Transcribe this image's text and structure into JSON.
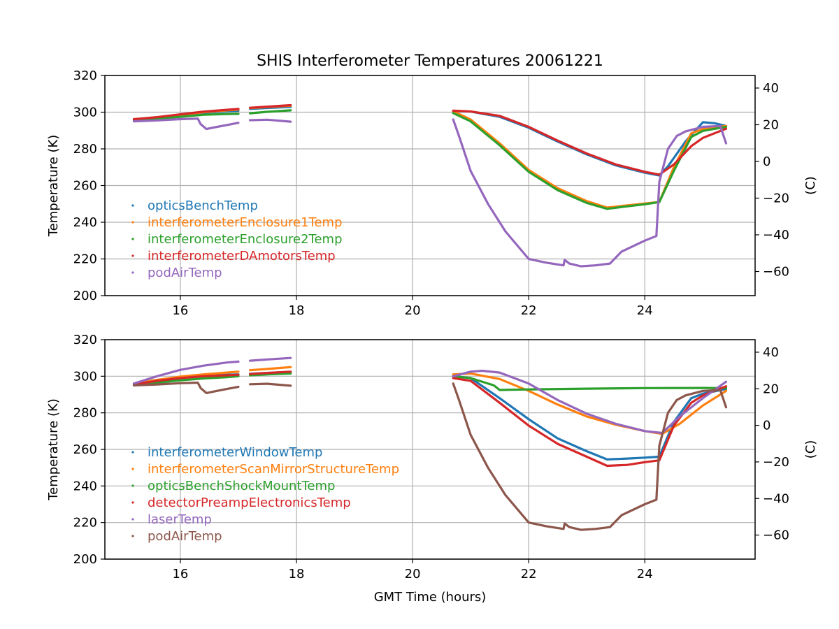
{
  "chart_data": [
    {
      "type": "line",
      "title": "SHIS Interferometer Temperatures 20061221",
      "xlabel": "",
      "ylabel": "Temperature (K)",
      "ylabel_right": "(C)",
      "xlim": [
        14.7,
        25.9
      ],
      "ylim": [
        200,
        320
      ],
      "ylim_right_celsius": [
        -73.15,
        46.85
      ],
      "xticks": [
        16,
        18,
        20,
        22,
        24
      ],
      "yticks": [
        200,
        220,
        240,
        260,
        280,
        300,
        320
      ],
      "yticks_right": [
        -60,
        -40,
        -20,
        0,
        20,
        40
      ],
      "grid": true,
      "legend_position": "center-left",
      "series": [
        {
          "name": "opticsBenchTemp",
          "color": "#1f77b4",
          "segments": [
            {
              "x": [
                15.2,
                15.6,
                16.0,
                16.4,
                16.8,
                17.0
              ],
              "y": [
                295.6,
                296.8,
                298.2,
                299.6,
                300.5,
                300.8
              ]
            },
            {
              "x": [
                17.2,
                17.5,
                17.9
              ],
              "y": [
                301.8,
                302.3,
                302.9
              ]
            },
            {
              "x": [
                20.7,
                21.0,
                21.5,
                22.0,
                22.5,
                23.0,
                23.5,
                24.0,
                24.25,
                24.4,
                24.7,
                25.0,
                25.2,
                25.4
              ],
              "y": [
                300.5,
                300.3,
                297.5,
                291.5,
                284.0,
                277.0,
                271.0,
                267.0,
                265.5,
                270.5,
                284.0,
                294.5,
                294.0,
                292.5
              ]
            }
          ]
        },
        {
          "name": "interferometerEnclosure1Temp",
          "color": "#ff7f0e",
          "segments": [
            {
              "x": [
                15.2,
                15.6,
                16.0,
                16.4,
                16.8,
                17.0
              ],
              "y": [
                295.8,
                297.0,
                298.5,
                300.0,
                301.0,
                301.4
              ]
            },
            {
              "x": [
                17.2,
                17.5,
                17.9
              ],
              "y": [
                302.2,
                302.8,
                303.5
              ]
            },
            {
              "x": [
                20.7,
                21.0,
                21.5,
                22.0,
                22.5,
                23.0,
                23.35,
                23.7,
                24.0,
                24.25,
                24.5,
                24.8,
                25.0,
                25.4
              ],
              "y": [
                300.5,
                296.0,
                283.0,
                268.5,
                258.5,
                251.5,
                248.0,
                249.2,
                250.2,
                251.0,
                270.0,
                288.5,
                290.8,
                292.5
              ]
            }
          ]
        },
        {
          "name": "interferometerEnclosure2Temp",
          "color": "#2ca02c",
          "segments": [
            {
              "x": [
                15.2,
                15.6,
                16.0,
                16.4,
                16.8,
                17.0
              ],
              "y": [
                295.5,
                296.3,
                297.5,
                298.6,
                299.0,
                299.1
              ]
            },
            {
              "x": [
                17.2,
                17.5,
                17.9
              ],
              "y": [
                299.4,
                300.2,
                301.0
              ]
            },
            {
              "x": [
                20.7,
                21.0,
                21.5,
                22.0,
                22.5,
                23.0,
                23.35,
                23.7,
                24.0,
                24.25,
                24.5,
                24.8,
                25.0,
                25.4
              ],
              "y": [
                299.5,
                295.0,
                282.0,
                267.5,
                257.5,
                250.5,
                247.3,
                248.7,
                249.8,
                251.0,
                268.0,
                286.5,
                289.8,
                292.0
              ]
            }
          ]
        },
        {
          "name": "interferometerDAmotorsTemp",
          "color": "#d62728",
          "segments": [
            {
              "x": [
                15.2,
                15.6,
                16.0,
                16.4,
                16.8,
                17.0
              ],
              "y": [
                296.2,
                297.3,
                298.8,
                300.3,
                301.3,
                301.8
              ]
            },
            {
              "x": [
                17.2,
                17.5,
                17.9
              ],
              "y": [
                302.4,
                303.0,
                303.8
              ]
            },
            {
              "x": [
                20.7,
                21.0,
                21.5,
                22.0,
                22.5,
                23.0,
                23.5,
                24.0,
                24.25,
                24.5,
                24.8,
                25.0,
                25.4
              ],
              "y": [
                300.8,
                300.4,
                298.0,
                292.0,
                284.5,
                277.5,
                271.5,
                267.5,
                266.0,
                271.5,
                281.5,
                286.0,
                291.0
              ]
            }
          ]
        },
        {
          "name": "podAirTemp",
          "color": "#9467bd",
          "segments": [
            {
              "x": [
                15.2,
                15.6,
                16.0,
                16.3,
                16.35,
                16.45,
                16.6,
                16.8,
                17.0
              ],
              "y": [
                295.0,
                295.5,
                296.2,
                296.5,
                293.5,
                290.8,
                291.8,
                293.0,
                294.2
              ]
            },
            {
              "x": [
                17.2,
                17.5,
                17.9
              ],
              "y": [
                295.6,
                295.9,
                294.8
              ]
            },
            {
              "x": [
                20.7,
                20.8,
                21.0,
                21.3,
                21.6,
                22.0,
                22.3,
                22.6,
                22.62,
                22.7,
                22.9,
                23.15,
                23.4,
                23.6,
                24.0,
                24.2,
                24.25,
                24.4,
                24.55,
                24.7,
                25.0,
                25.3,
                25.4
              ],
              "y": [
                296.0,
                287.0,
                268.0,
                250.0,
                235.0,
                220.0,
                218.0,
                216.5,
                219.5,
                217.5,
                216.0,
                216.5,
                217.5,
                224.0,
                230.0,
                232.5,
                262.0,
                280.0,
                287.0,
                289.5,
                292.0,
                292.5,
                283.0
              ]
            }
          ]
        }
      ]
    },
    {
      "type": "line",
      "title": "",
      "xlabel": "GMT Time (hours)",
      "ylabel": "Temperature (K)",
      "ylabel_right": "(C)",
      "xlim": [
        14.7,
        25.9
      ],
      "ylim": [
        200,
        320
      ],
      "ylim_right_celsius": [
        -73.15,
        46.85
      ],
      "xticks": [
        16,
        18,
        20,
        22,
        24
      ],
      "yticks": [
        200,
        220,
        240,
        260,
        280,
        300,
        320
      ],
      "yticks_right": [
        -60,
        -40,
        -20,
        0,
        20,
        40
      ],
      "grid": true,
      "legend_position": "center-left",
      "series": [
        {
          "name": "interferometerWindowTemp",
          "color": "#1f77b4",
          "segments": [
            {
              "x": [
                15.2,
                15.6,
                16.0,
                16.4,
                16.8,
                17.0
              ],
              "y": [
                296.0,
                298.0,
                299.5,
                300.3,
                300.8,
                301.0
              ]
            },
            {
              "x": [
                17.2,
                17.5,
                17.9
              ],
              "y": [
                301.3,
                301.8,
                302.4
              ]
            },
            {
              "x": [
                20.7,
                21.0,
                21.5,
                22.0,
                22.5,
                23.0,
                23.35,
                23.7,
                24.0,
                24.25,
                24.5,
                24.8,
                25.0,
                25.4
              ],
              "y": [
                300.0,
                299.0,
                288.0,
                276.5,
                266.0,
                259.0,
                254.5,
                255.0,
                255.5,
                256.0,
                275.0,
                288.0,
                290.5,
                293.0
              ]
            }
          ]
        },
        {
          "name": "interferometerScanMirrorStructureTemp",
          "color": "#ff7f0e",
          "segments": [
            {
              "x": [
                15.2,
                15.6,
                16.0,
                16.4,
                16.8,
                17.0
              ],
              "y": [
                296.0,
                298.0,
                299.8,
                301.0,
                302.0,
                302.5
              ]
            },
            {
              "x": [
                17.2,
                17.5,
                17.9
              ],
              "y": [
                303.3,
                304.0,
                305.0
              ]
            },
            {
              "x": [
                20.7,
                21.0,
                21.5,
                22.0,
                22.5,
                23.0,
                23.5,
                24.0,
                24.3,
                24.6,
                25.0,
                25.4
              ],
              "y": [
                301.0,
                301.5,
                298.5,
                292.0,
                284.5,
                278.0,
                273.5,
                270.0,
                268.5,
                274.0,
                284.0,
                292.0
              ]
            }
          ]
        },
        {
          "name": "opticsBenchShockMountTemp",
          "color": "#2ca02c",
          "segments": [
            {
              "x": [
                15.2,
                15.6,
                16.0,
                16.4,
                16.8,
                17.0
              ],
              "y": [
                295.0,
                296.5,
                297.8,
                298.8,
                299.5,
                300.0
              ]
            },
            {
              "x": [
                17.2,
                17.5,
                17.9
              ],
              "y": [
                300.5,
                301.0,
                301.5
              ]
            },
            {
              "x": [
                20.7,
                21.0,
                21.4,
                21.5,
                22.0,
                23.0,
                24.0,
                25.0,
                25.4
              ],
              "y": [
                300.0,
                299.0,
                295.0,
                292.5,
                292.8,
                293.2,
                293.5,
                293.6,
                293.5
              ]
            }
          ]
        },
        {
          "name": "detectorPreampElectronicsTemp",
          "color": "#d62728",
          "segments": [
            {
              "x": [
                15.2,
                15.6,
                16.0,
                16.4,
                16.8,
                17.0
              ],
              "y": [
                295.5,
                297.5,
                299.0,
                300.0,
                300.5,
                300.8
              ]
            },
            {
              "x": [
                17.2,
                17.5,
                17.9
              ],
              "y": [
                301.2,
                301.8,
                302.5
              ]
            },
            {
              "x": [
                20.7,
                21.0,
                21.5,
                22.0,
                22.5,
                23.0,
                23.35,
                23.7,
                24.0,
                24.25,
                24.5,
                24.8,
                25.0,
                25.4
              ],
              "y": [
                299.0,
                297.5,
                285.5,
                273.0,
                263.0,
                256.0,
                251.0,
                251.5,
                253.0,
                254.0,
                273.0,
                285.5,
                289.5,
                294.5
              ]
            }
          ]
        },
        {
          "name": "laserTemp",
          "color": "#9467bd",
          "segments": [
            {
              "x": [
                15.2,
                15.6,
                16.0,
                16.4,
                16.8,
                17.0
              ],
              "y": [
                296.0,
                300.0,
                303.5,
                305.8,
                307.5,
                308.0
              ]
            },
            {
              "x": [
                17.2,
                17.5,
                17.9
              ],
              "y": [
                308.5,
                309.2,
                310.0
              ]
            },
            {
              "x": [
                20.7,
                21.0,
                21.2,
                21.5,
                22.0,
                22.5,
                23.0,
                23.5,
                24.0,
                24.3,
                24.6,
                25.0,
                25.4
              ],
              "y": [
                300.0,
                302.5,
                303.0,
                302.0,
                296.0,
                287.0,
                279.5,
                274.0,
                270.0,
                269.0,
                278.0,
                288.0,
                297.0
              ]
            }
          ]
        },
        {
          "name": "podAirTemp",
          "color": "#8c564b",
          "segments": [
            {
              "x": [
                15.2,
                15.6,
                16.0,
                16.3,
                16.35,
                16.45,
                16.6,
                16.8,
                17.0
              ],
              "y": [
                295.0,
                295.5,
                296.2,
                296.5,
                293.5,
                290.8,
                291.8,
                293.0,
                294.2
              ]
            },
            {
              "x": [
                17.2,
                17.5,
                17.9
              ],
              "y": [
                295.6,
                295.9,
                294.8
              ]
            },
            {
              "x": [
                20.7,
                20.8,
                21.0,
                21.3,
                21.6,
                22.0,
                22.3,
                22.6,
                22.62,
                22.7,
                22.9,
                23.15,
                23.4,
                23.6,
                24.0,
                24.2,
                24.25,
                24.4,
                24.55,
                24.7,
                25.0,
                25.3,
                25.4
              ],
              "y": [
                296.0,
                287.0,
                268.0,
                250.0,
                235.0,
                220.0,
                218.0,
                216.5,
                219.5,
                217.5,
                216.0,
                216.5,
                217.5,
                224.0,
                230.0,
                232.5,
                262.0,
                280.0,
                287.0,
                289.5,
                292.0,
                292.5,
                283.0
              ]
            }
          ]
        }
      ]
    }
  ]
}
